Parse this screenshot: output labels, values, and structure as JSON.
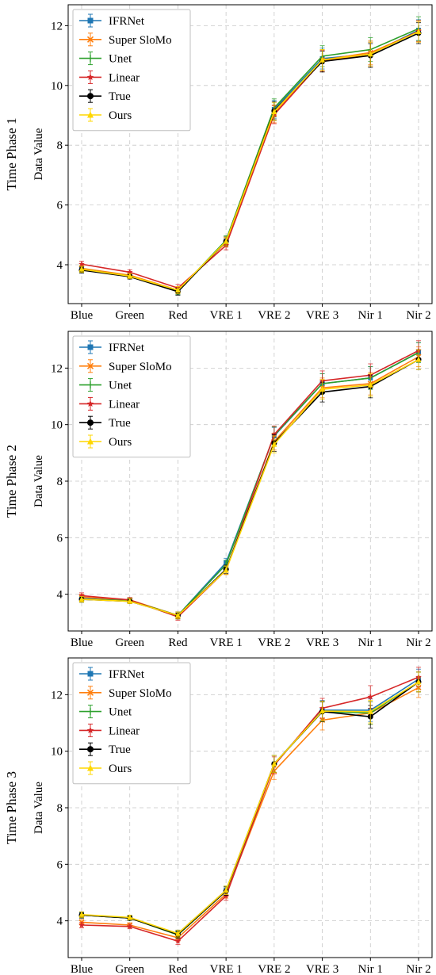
{
  "chart_data": [
    {
      "type": "line",
      "row_label": "Time Phase 1",
      "ylabel": "Data Value",
      "xlabel": "",
      "title": "",
      "categories": [
        "Blue",
        "Green",
        "Red",
        "VRE 1",
        "VRE 2",
        "VRE 3",
        "Nir 1",
        "Nir 2"
      ],
      "ylim": [
        2.7,
        12.7
      ],
      "yticks": [
        4,
        6,
        8,
        10,
        12
      ],
      "grid": true,
      "legend": "top-left",
      "series": [
        {
          "name": "IFRNet",
          "color": "#1f77b4",
          "marker": "square",
          "values": [
            3.85,
            3.62,
            3.12,
            4.8,
            9.2,
            10.9,
            11.05,
            11.85
          ],
          "errors": [
            0.1,
            0.08,
            0.12,
            0.15,
            0.3,
            0.35,
            0.4,
            0.35
          ]
        },
        {
          "name": "Super SloMo",
          "color": "#ff7f0e",
          "marker": "x",
          "values": [
            3.88,
            3.65,
            3.15,
            4.75,
            9.05,
            10.85,
            11.1,
            11.8
          ],
          "errors": [
            0.1,
            0.08,
            0.12,
            0.15,
            0.3,
            0.35,
            0.4,
            0.35
          ]
        },
        {
          "name": "Unet",
          "color": "#2ca02c",
          "marker": "bar",
          "values": [
            3.85,
            3.62,
            3.12,
            4.82,
            9.25,
            10.98,
            11.2,
            11.9
          ],
          "errors": [
            0.1,
            0.08,
            0.12,
            0.15,
            0.3,
            0.35,
            0.4,
            0.4
          ]
        },
        {
          "name": "Linear",
          "color": "#d62728",
          "marker": "star",
          "values": [
            4.02,
            3.75,
            3.22,
            4.65,
            9.02,
            10.82,
            11.05,
            11.82
          ],
          "errors": [
            0.1,
            0.08,
            0.12,
            0.15,
            0.3,
            0.35,
            0.4,
            0.35
          ]
        },
        {
          "name": "True",
          "color": "#000000",
          "marker": "circle",
          "values": [
            3.82,
            3.6,
            3.1,
            4.78,
            9.15,
            10.8,
            11.0,
            11.75
          ],
          "errors": [
            0.1,
            0.08,
            0.12,
            0.15,
            0.3,
            0.35,
            0.4,
            0.35
          ]
        },
        {
          "name": "Ours",
          "color": "#ffd700",
          "marker": "triangle",
          "values": [
            3.85,
            3.62,
            3.15,
            4.78,
            9.12,
            10.85,
            11.05,
            11.8
          ],
          "errors": [
            0.1,
            0.08,
            0.12,
            0.15,
            0.3,
            0.35,
            0.4,
            0.35
          ]
        }
      ]
    },
    {
      "type": "line",
      "row_label": "Time Phase 2",
      "ylabel": "Data Value",
      "xlabel": "",
      "title": "",
      "categories": [
        "Blue",
        "Green",
        "Red",
        "VRE 1",
        "VRE 2",
        "VRE 3",
        "Nir 1",
        "Nir 2"
      ],
      "ylim": [
        2.7,
        13.3
      ],
      "yticks": [
        4,
        6,
        8,
        10,
        12
      ],
      "grid": true,
      "legend": "top-left",
      "series": [
        {
          "name": "IFRNet",
          "color": "#1f77b4",
          "marker": "square",
          "values": [
            3.85,
            3.78,
            3.25,
            5.12,
            9.6,
            11.45,
            11.65,
            12.55
          ],
          "errors": [
            0.1,
            0.08,
            0.12,
            0.15,
            0.3,
            0.35,
            0.4,
            0.35
          ]
        },
        {
          "name": "Super SloMo",
          "color": "#ff7f0e",
          "marker": "x",
          "values": [
            3.9,
            3.8,
            3.25,
            4.85,
            9.4,
            11.3,
            11.45,
            12.4
          ],
          "errors": [
            0.1,
            0.08,
            0.12,
            0.15,
            0.3,
            0.35,
            0.4,
            0.35
          ]
        },
        {
          "name": "Unet",
          "color": "#2ca02c",
          "marker": "bar",
          "values": [
            3.82,
            3.78,
            3.25,
            5.05,
            9.62,
            11.45,
            11.65,
            12.55
          ],
          "errors": [
            0.1,
            0.08,
            0.12,
            0.15,
            0.3,
            0.35,
            0.4,
            0.35
          ]
        },
        {
          "name": "Linear",
          "color": "#d62728",
          "marker": "star",
          "values": [
            3.95,
            3.8,
            3.2,
            4.85,
            9.65,
            11.55,
            11.75,
            12.62
          ],
          "errors": [
            0.1,
            0.08,
            0.12,
            0.15,
            0.3,
            0.35,
            0.4,
            0.35
          ]
        },
        {
          "name": "True",
          "color": "#000000",
          "marker": "circle",
          "values": [
            3.82,
            3.75,
            3.25,
            4.88,
            9.35,
            11.15,
            11.35,
            12.3
          ],
          "errors": [
            0.1,
            0.08,
            0.12,
            0.15,
            0.3,
            0.35,
            0.4,
            0.35
          ]
        },
        {
          "name": "Ours",
          "color": "#ffd700",
          "marker": "triangle",
          "values": [
            3.82,
            3.75,
            3.25,
            4.85,
            9.3,
            11.25,
            11.4,
            12.3
          ],
          "errors": [
            0.1,
            0.08,
            0.12,
            0.15,
            0.3,
            0.35,
            0.4,
            0.35
          ]
        }
      ]
    },
    {
      "type": "line",
      "row_label": "Time Phase 3",
      "ylabel": "Data Value",
      "xlabel": "",
      "title": "",
      "categories": [
        "Blue",
        "Green",
        "Red",
        "VRE 1",
        "VRE 2",
        "VRE 3",
        "Nir 1",
        "Nir 2"
      ],
      "ylim": [
        2.7,
        13.3
      ],
      "yticks": [
        4,
        6,
        8,
        10,
        12
      ],
      "grid": true,
      "legend": "top-left",
      "series": [
        {
          "name": "IFRNet",
          "color": "#1f77b4",
          "marker": "square",
          "values": [
            4.2,
            4.1,
            3.55,
            5.08,
            9.55,
            11.45,
            11.45,
            12.55
          ],
          "errors": [
            0.1,
            0.08,
            0.12,
            0.15,
            0.3,
            0.35,
            0.4,
            0.35
          ]
        },
        {
          "name": "Super SloMo",
          "color": "#ff7f0e",
          "marker": "x",
          "values": [
            3.95,
            3.85,
            3.4,
            4.95,
            9.3,
            11.1,
            11.35,
            12.25
          ],
          "errors": [
            0.1,
            0.08,
            0.12,
            0.15,
            0.3,
            0.35,
            0.4,
            0.35
          ]
        },
        {
          "name": "Unet",
          "color": "#2ca02c",
          "marker": "bar",
          "values": [
            4.2,
            4.1,
            3.5,
            5.05,
            9.55,
            11.4,
            11.35,
            12.45
          ],
          "errors": [
            0.1,
            0.08,
            0.12,
            0.15,
            0.3,
            0.35,
            0.4,
            0.35
          ]
        },
        {
          "name": "Linear",
          "color": "#d62728",
          "marker": "star",
          "values": [
            3.85,
            3.8,
            3.28,
            4.88,
            9.5,
            11.52,
            11.92,
            12.62
          ],
          "errors": [
            0.1,
            0.08,
            0.12,
            0.15,
            0.3,
            0.35,
            0.4,
            0.35
          ]
        },
        {
          "name": "True",
          "color": "#000000",
          "marker": "circle",
          "values": [
            4.2,
            4.1,
            3.52,
            5.05,
            9.55,
            11.4,
            11.22,
            12.45
          ],
          "errors": [
            0.1,
            0.08,
            0.12,
            0.15,
            0.3,
            0.35,
            0.4,
            0.35
          ]
        },
        {
          "name": "Ours",
          "color": "#ffd700",
          "marker": "triangle",
          "values": [
            4.22,
            4.12,
            3.55,
            5.08,
            9.55,
            11.42,
            11.4,
            12.45
          ],
          "errors": [
            0.1,
            0.08,
            0.12,
            0.15,
            0.3,
            0.35,
            0.4,
            0.35
          ]
        }
      ]
    }
  ]
}
